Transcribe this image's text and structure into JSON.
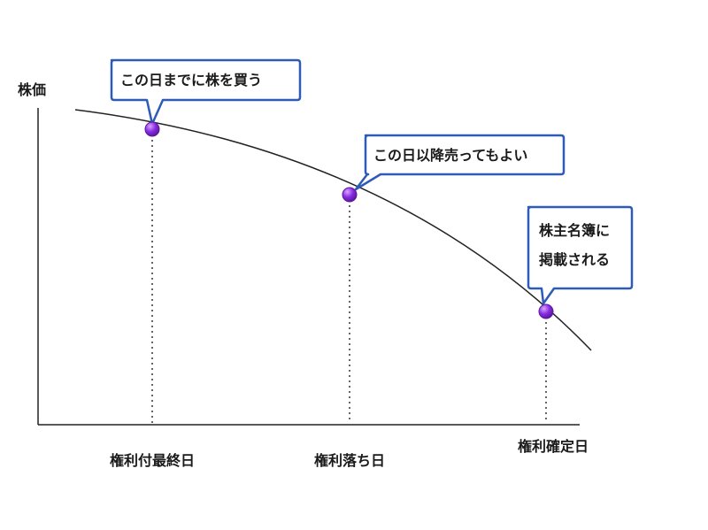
{
  "y_axis_label": "株価",
  "dates": [
    {
      "label": "権利付最終日"
    },
    {
      "label": "権利落ち日"
    },
    {
      "label": "権利確定日"
    }
  ],
  "callouts": [
    {
      "lines": [
        "この日までに株を買う"
      ]
    },
    {
      "lines": [
        "この日以降売ってもよい"
      ]
    },
    {
      "lines": [
        "株主名簿に",
        "掲載される"
      ]
    }
  ],
  "colors": {
    "axis": "#222222",
    "curve": "#222222",
    "callout_border": "#2e5bb5",
    "marker": "#8a2be2",
    "marker_edge": "#5a1a9e"
  }
}
